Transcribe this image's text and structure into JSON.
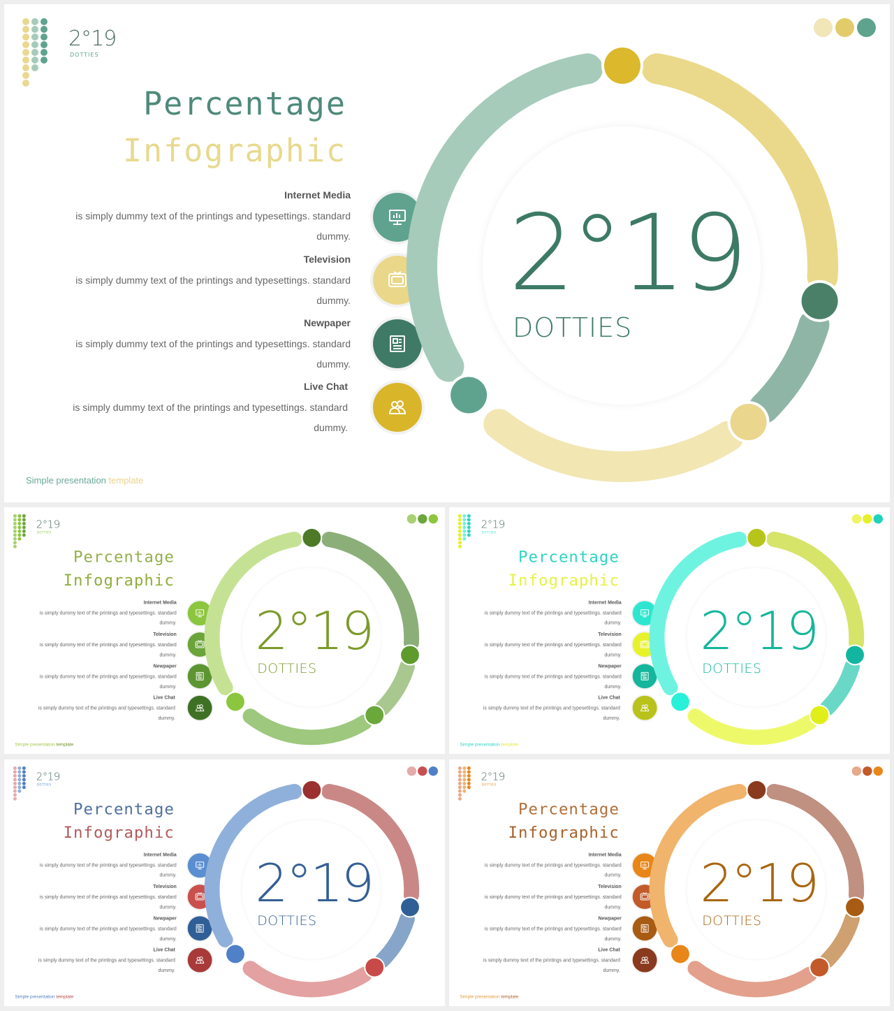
{
  "slides": [
    {
      "id": "main",
      "logo_text": "2°19",
      "logo_sub": "DOTTIES",
      "title_line1": "Percentage",
      "title_line2": "Infographic",
      "center_number": "2°19",
      "center_label": "DOTTIES",
      "footer_part1": "Simple presentation",
      "footer_part2": "template",
      "features": [
        {
          "title": "Internet Media",
          "desc": "is simply dummy  text of the printings and typesettings. standard dummy.",
          "icon": "monitor-chart-icon"
        },
        {
          "title": "Television",
          "desc": "is simply dummy  text of the printings and typesettings. standard dummy.",
          "icon": "tv-icon"
        },
        {
          "title": "Newpaper",
          "desc": "is simply dummy  text of the printings and typesettings. standard dummy.",
          "icon": "newspaper-icon"
        },
        {
          "title": "Live Chat",
          "desc": "is simply dummy  text of the printings and typesettings. standard dummy.",
          "icon": "users-icon"
        }
      ],
      "colors": {
        "title1": "#4e8a7a",
        "title2": "#e8d98f",
        "number": "#3d7a66",
        "footer1": "#6aa898",
        "footer2": "#e8d48a",
        "icons": [
          "#5fa38e",
          "#ead789",
          "#3f7a66",
          "#d9b52a"
        ],
        "top_dots": [
          "#f0e6b8",
          "#e2cc6a",
          "#5fa38e"
        ],
        "arcs": [
          "#a6cbbb",
          "#ead98a",
          "#8fb5a6",
          "#f2e6b3"
        ],
        "knobs": [
          "#dbb82c",
          "#4a8068",
          "#ead68c",
          "#5fa38e"
        ],
        "logo_dots": [
          "#e8d98f",
          "#a6cbbb",
          "#5fa38e"
        ]
      }
    },
    {
      "id": "green",
      "logo_text": "2°19",
      "logo_sub": "DOTTIES",
      "title_line1": "Percentage",
      "title_line2": "Infographic",
      "center_number": "2°19",
      "center_label": "DOTTIES",
      "footer_part1": "Simple presentation",
      "footer_part2": "template",
      "features": [
        {
          "title": "Internet Media",
          "desc": "is simply dummy  text of the printings and typesettings. standard dummy.",
          "icon": "monitor-chart-icon"
        },
        {
          "title": "Television",
          "desc": "is simply dummy  text of the printings and typesettings. standard dummy.",
          "icon": "tv-icon"
        },
        {
          "title": "Newpaper",
          "desc": "is simply dummy  text of the printings and typesettings. standard dummy.",
          "icon": "newspaper-icon"
        },
        {
          "title": "Live Chat",
          "desc": "is simply dummy  text of the printings and typesettings. standard dummy.",
          "icon": "users-icon"
        }
      ],
      "colors": {
        "title1": "#93b04b",
        "title2": "#8fae3c",
        "number": "#7c9a2a",
        "footer1": "#a4c64a",
        "footer2": "#6c8f22",
        "icons": [
          "#8cc63e",
          "#6ba43a",
          "#5d9532",
          "#3f7125"
        ],
        "top_dots": [
          "#a9d071",
          "#6ea63e",
          "#8cc63e"
        ],
        "arcs": [
          "#c5e294",
          "#8caf7a",
          "#a9c890",
          "#9dc87e"
        ],
        "knobs": [
          "#4e7a27",
          "#5e9a2e",
          "#6aa83a",
          "#8cc63e"
        ],
        "logo_dots": [
          "#a9d071",
          "#8cc63e",
          "#6ea63e"
        ]
      }
    },
    {
      "id": "teal",
      "logo_text": "2°19",
      "logo_sub": "DOTTIES",
      "title_line1": "Percentage",
      "title_line2": "Infographic",
      "center_number": "2°19",
      "center_label": "DOTTIES",
      "footer_part1": "Simple presentation",
      "footer_part2": "template",
      "features": [
        {
          "title": "Internet Media",
          "desc": "is simply dummy  text of the printings and typesettings. standard dummy.",
          "icon": "monitor-chart-icon"
        },
        {
          "title": "Television",
          "desc": "is simply dummy  text of the printings and typesettings. standard dummy.",
          "icon": "tv-icon"
        },
        {
          "title": "Newpaper",
          "desc": "is simply dummy  text of the printings and typesettings. standard dummy.",
          "icon": "newspaper-icon"
        },
        {
          "title": "Live Chat",
          "desc": "is simply dummy  text of the printings and typesettings. standard dummy.",
          "icon": "users-icon"
        }
      ],
      "colors": {
        "title1": "#2fd4c2",
        "title2": "#e6f244",
        "number": "#15b69b",
        "footer1": "#2fd4c2",
        "footer2": "#e0ea3a",
        "icons": [
          "#2ee6d0",
          "#e8f22a",
          "#15b69b",
          "#b8c21a"
        ],
        "top_dots": [
          "#eef560",
          "#e6f02a",
          "#1fd3bd"
        ],
        "arcs": [
          "#6ff3e1",
          "#d6e46a",
          "#6ad8c6",
          "#eef96a"
        ],
        "knobs": [
          "#b7c51a",
          "#12b6a0",
          "#e0ee1a",
          "#29f0d8"
        ],
        "logo_dots": [
          "#e6f02a",
          "#6ff3e1",
          "#2fd4c2"
        ]
      }
    },
    {
      "id": "blue",
      "logo_text": "2°19",
      "logo_sub": "DOTTIES",
      "title_line1": "Percentage",
      "title_line2": "Infographic",
      "center_number": "2°19",
      "center_label": "DOTTIES",
      "footer_part1": "Simple presentation",
      "footer_part2": "template",
      "features": [
        {
          "title": "Internet Media",
          "desc": "is simply dummy  text of the printings and typesettings. standard dummy.",
          "icon": "monitor-chart-icon"
        },
        {
          "title": "Television",
          "desc": "is simply dummy  text of the printings and typesettings. standard dummy.",
          "icon": "tv-icon"
        },
        {
          "title": "Newpaper",
          "desc": "is simply dummy  text of the printings and typesettings. standard dummy.",
          "icon": "newspaper-icon"
        },
        {
          "title": "Live Chat",
          "desc": "is simply dummy  text of the printings and typesettings. standard dummy.",
          "icon": "users-icon"
        }
      ],
      "colors": {
        "title1": "#4f6f9e",
        "title2": "#b25a5a",
        "number": "#345f94",
        "footer1": "#4f7fbf",
        "footer2": "#b24747",
        "icons": [
          "#5a8ed0",
          "#c9504e",
          "#2f5f96",
          "#a83a3a"
        ],
        "top_dots": [
          "#e5aaaa",
          "#c9504e",
          "#4f80c8"
        ],
        "arcs": [
          "#8fb0da",
          "#c98886",
          "#86a5c9",
          "#e3a1a1"
        ],
        "knobs": [
          "#9a3030",
          "#2f5f96",
          "#c84a48",
          "#4f80c8"
        ],
        "logo_dots": [
          "#e5aaaa",
          "#8fb0da",
          "#4f80c8"
        ]
      }
    },
    {
      "id": "orange",
      "logo_text": "2°19",
      "logo_sub": "DOTTIES",
      "title_line1": "Percentage",
      "title_line2": "Infographic",
      "center_number": "2°19",
      "center_label": "DOTTIES",
      "footer_part1": "Simple presentation",
      "footer_part2": "template",
      "features": [
        {
          "title": "Internet Media",
          "desc": "is simply dummy  text of the printings and typesettings. standard dummy.",
          "icon": "monitor-chart-icon"
        },
        {
          "title": "Television",
          "desc": "is simply dummy  text of the printings and typesettings. standard dummy.",
          "icon": "tv-icon"
        },
        {
          "title": "Newpaper",
          "desc": "is simply dummy  text of the printings and typesettings. standard dummy.",
          "icon": "newspaper-icon"
        },
        {
          "title": "Live Chat",
          "desc": "is simply dummy  text of the printings and typesettings. standard dummy.",
          "icon": "users-icon"
        }
      ],
      "colors": {
        "title1": "#b0703a",
        "title2": "#a8622a",
        "number": "#a86510",
        "footer1": "#e39a3a",
        "footer2": "#a8622a",
        "icons": [
          "#e8861a",
          "#c25a2a",
          "#a85b12",
          "#8a3a1e"
        ],
        "top_dots": [
          "#e8a88a",
          "#c25a2a",
          "#e8861a"
        ],
        "arcs": [
          "#f0b46c",
          "#c09080",
          "#cfa070",
          "#e3a08c"
        ],
        "knobs": [
          "#8a3a1e",
          "#a85b12",
          "#c25a2a",
          "#e8861a"
        ],
        "logo_dots": [
          "#e8a88a",
          "#f0b46c",
          "#e8861a"
        ]
      }
    }
  ]
}
